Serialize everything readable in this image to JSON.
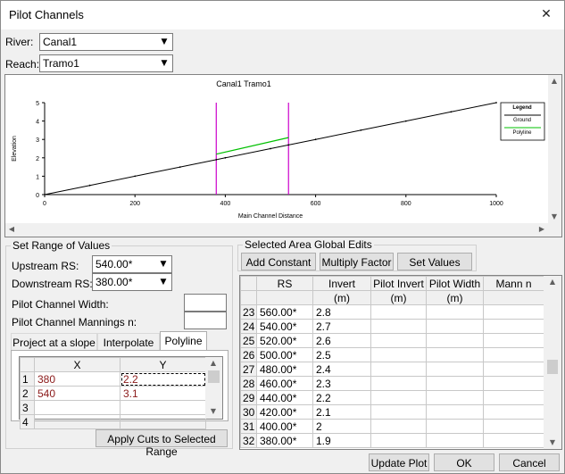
{
  "window": {
    "title": "Pilot Channels",
    "close_icon": "close-icon"
  },
  "river": {
    "label": "River:",
    "value": "Canal1"
  },
  "reach": {
    "label": "Reach:",
    "value": "Tramo1"
  },
  "chart_data": {
    "type": "line",
    "title": "Canal1  Tramo1",
    "xlabel": "Main Channel Distance",
    "ylabel": "Elevation",
    "xlim": [
      0,
      1000
    ],
    "ylim": [
      0,
      5
    ],
    "xticks": [
      0,
      200,
      400,
      600,
      800,
      1000
    ],
    "yticks": [
      0,
      1,
      2,
      3,
      4,
      5
    ],
    "series": [
      {
        "name": "Ground",
        "color": "#000000",
        "x": [
          0,
          100,
          200,
          300,
          380,
          400,
          500,
          540,
          600,
          700,
          800,
          900,
          1000
        ],
        "y": [
          0,
          0.5,
          1.0,
          1.5,
          1.9,
          2.0,
          2.5,
          2.7,
          3.0,
          3.5,
          4.0,
          4.5,
          5.0
        ]
      },
      {
        "name": "Polyline",
        "color": "#00c000",
        "x": [
          380,
          540
        ],
        "y": [
          2.2,
          3.1
        ]
      }
    ],
    "markers": [
      {
        "x": 380,
        "color": "#cc00cc"
      },
      {
        "x": 540,
        "color": "#cc00cc"
      }
    ],
    "legend": {
      "title": "Legend",
      "placement": "top-right",
      "entries": [
        "Ground",
        "Polyline"
      ]
    }
  },
  "range": {
    "group_title": "Set Range of Values",
    "upstream_label": "Upstream RS:",
    "upstream_value": "540.00*",
    "downstream_label": "Downstream RS:",
    "downstream_value": "380.00*",
    "width_label": "Pilot Channel Width:",
    "mannings_label": "Pilot Channel Mannings n:",
    "tabs": [
      "Project at a slope",
      "Interpolate",
      "Polyline"
    ],
    "poly_headers": [
      "X",
      "Y"
    ],
    "poly_rows": [
      {
        "n": "1",
        "x": "380",
        "y": "2.2"
      },
      {
        "n": "2",
        "x": "540",
        "y": "3.1"
      },
      {
        "n": "3",
        "x": "",
        "y": ""
      },
      {
        "n": "4",
        "x": "",
        "y": ""
      }
    ],
    "apply_button": "Apply Cuts to Selected Range"
  },
  "global": {
    "group_title": "Selected Area Global Edits",
    "add_constant": "Add Constant",
    "multiply_factor": "Multiply Factor",
    "set_values": "Set Values"
  },
  "table": {
    "headers": [
      "RS",
      "Invert",
      "Pilot Invert",
      "Pilot Width",
      "Mann n"
    ],
    "units": [
      "",
      "(m)",
      "(m)",
      "(m)",
      ""
    ],
    "rows": [
      {
        "n": "23",
        "rs": "560.00*",
        "invert": "2.8"
      },
      {
        "n": "24",
        "rs": "540.00*",
        "invert": "2.7"
      },
      {
        "n": "25",
        "rs": "520.00*",
        "invert": "2.6"
      },
      {
        "n": "26",
        "rs": "500.00*",
        "invert": "2.5"
      },
      {
        "n": "27",
        "rs": "480.00*",
        "invert": "2.4"
      },
      {
        "n": "28",
        "rs": "460.00*",
        "invert": "2.3"
      },
      {
        "n": "29",
        "rs": "440.00*",
        "invert": "2.2"
      },
      {
        "n": "30",
        "rs": "420.00*",
        "invert": "2.1"
      },
      {
        "n": "31",
        "rs": "400.00*",
        "invert": "2"
      },
      {
        "n": "32",
        "rs": "380.00*",
        "invert": "1.9"
      }
    ]
  },
  "footer": {
    "update_plot": "Update Plot",
    "ok": "OK",
    "cancel": "Cancel"
  }
}
